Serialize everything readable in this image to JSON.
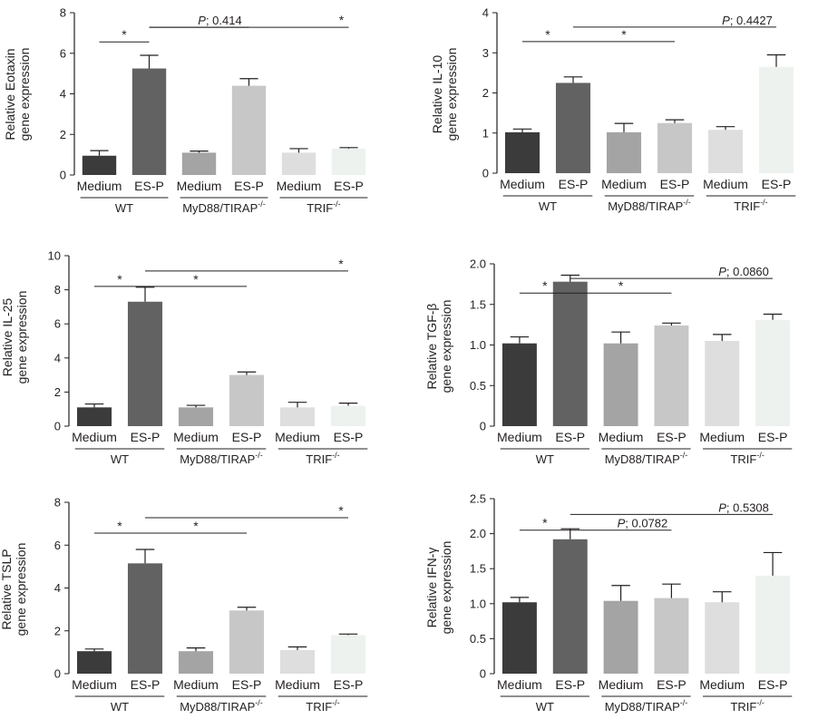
{
  "bar_colors": [
    "#3c3b3c",
    "#626262",
    "#a4a4a4",
    "#c7c7c7",
    "#dedede",
    "#eef2ee"
  ],
  "axis_color": "#231f20",
  "group_labels": [
    "WT",
    "MyD88/TIRAP",
    "TRIF"
  ],
  "group_superscripts": [
    "",
    "-/-",
    "-/-"
  ],
  "chart_data": [
    {
      "type": "bar",
      "panel": "Eotaxin",
      "ylabel": [
        "Relative Eotaxin",
        "gene expression"
      ],
      "categories": [
        "Medium",
        "ES-P",
        "Medium",
        "ES-P",
        "Medium",
        "ES-P"
      ],
      "values": [
        0.95,
        5.25,
        1.1,
        4.4,
        1.1,
        1.3
      ],
      "errors": [
        0.25,
        0.65,
        0.08,
        0.35,
        0.2,
        0.05
      ],
      "ylim": [
        0,
        8
      ],
      "yticks": [
        0,
        2,
        4,
        6,
        8
      ],
      "yticklabels": [
        "0",
        "2",
        "4",
        "6",
        "8"
      ],
      "comparisons": [
        {
          "from": 0,
          "to": 1,
          "label": "*",
          "italic_p": false,
          "level": 0
        },
        {
          "from": 1,
          "to": 3,
          "label": "P; 0.414",
          "italic_p": true,
          "level": 1
        },
        {
          "from": 1,
          "to": 5,
          "label": "*",
          "italic_p": false,
          "level": 1
        }
      ]
    },
    {
      "type": "bar",
      "panel": "IL-10",
      "ylabel": [
        "Relative IL-10",
        "gene expression"
      ],
      "categories": [
        "Medium",
        "ES-P",
        "Medium",
        "ES-P",
        "Medium",
        "ES-P"
      ],
      "values": [
        1.02,
        2.25,
        1.02,
        1.25,
        1.08,
        2.65
      ],
      "errors": [
        0.08,
        0.15,
        0.22,
        0.08,
        0.08,
        0.3
      ],
      "ylim": [
        0,
        4
      ],
      "yticks": [
        0,
        1,
        2,
        3,
        4
      ],
      "yticklabels": [
        "0",
        "1",
        "2",
        "3",
        "4"
      ],
      "comparisons": [
        {
          "from": 0,
          "to": 1,
          "label": "*",
          "italic_p": false,
          "level": 0
        },
        {
          "from": 1,
          "to": 3,
          "label": "*",
          "italic_p": false,
          "level": 0
        },
        {
          "from": 1,
          "to": 5,
          "label": "P; 0.4427",
          "italic_p": true,
          "level": 1
        }
      ]
    },
    {
      "type": "bar",
      "panel": "IL-25",
      "ylabel": [
        "Relative IL-25",
        "gene expression"
      ],
      "categories": [
        "Medium",
        "ES-P",
        "Medium",
        "ES-P",
        "Medium",
        "ES-P"
      ],
      "values": [
        1.1,
        7.3,
        1.1,
        3.0,
        1.1,
        1.2
      ],
      "errors": [
        0.2,
        0.85,
        0.12,
        0.18,
        0.3,
        0.15
      ],
      "ylim": [
        0,
        10
      ],
      "yticks": [
        0,
        2,
        4,
        6,
        8,
        10
      ],
      "yticklabels": [
        "0",
        "2",
        "4",
        "6",
        "8",
        "10"
      ],
      "comparisons": [
        {
          "from": 0,
          "to": 1,
          "label": "*",
          "italic_p": false,
          "level": 0
        },
        {
          "from": 1,
          "to": 3,
          "label": "*",
          "italic_p": false,
          "level": 0
        },
        {
          "from": 1,
          "to": 5,
          "label": "*",
          "italic_p": false,
          "level": 1
        }
      ]
    },
    {
      "type": "bar",
      "panel": "TGF-beta",
      "ylabel": [
        "Relative TGF-β",
        "gene expression"
      ],
      "categories": [
        "Medium",
        "ES-P",
        "Medium",
        "ES-P",
        "Medium",
        "ES-P"
      ],
      "values": [
        1.02,
        1.78,
        1.02,
        1.24,
        1.05,
        1.31
      ],
      "errors": [
        0.08,
        0.08,
        0.14,
        0.03,
        0.08,
        0.07
      ],
      "ylim": [
        0,
        2.0
      ],
      "yticks": [
        0,
        0.5,
        1.0,
        1.5,
        2.0
      ],
      "yticklabels": [
        "0",
        "0.5",
        "1.0",
        "1.5",
        "2.0"
      ],
      "comparisons": [
        {
          "from": 0,
          "to": 1,
          "label": "*",
          "italic_p": false,
          "level": 0
        },
        {
          "from": 1,
          "to": 3,
          "label": "*",
          "italic_p": false,
          "level": 0
        },
        {
          "from": 1,
          "to": 5,
          "label": "P; 0.0860",
          "italic_p": true,
          "level": 1
        }
      ]
    },
    {
      "type": "bar",
      "panel": "TSLP",
      "ylabel": [
        "Relative TSLP",
        "gene expression"
      ],
      "categories": [
        "Medium",
        "ES-P",
        "Medium",
        "ES-P",
        "Medium",
        "ES-P"
      ],
      "values": [
        1.05,
        5.15,
        1.05,
        2.95,
        1.1,
        1.8
      ],
      "errors": [
        0.1,
        0.65,
        0.15,
        0.15,
        0.15,
        0.05
      ],
      "ylim": [
        0,
        8
      ],
      "yticks": [
        0,
        2,
        4,
        6,
        8
      ],
      "yticklabels": [
        "0",
        "2",
        "4",
        "6",
        "8"
      ],
      "comparisons": [
        {
          "from": 0,
          "to": 1,
          "label": "*",
          "italic_p": false,
          "level": 0
        },
        {
          "from": 1,
          "to": 3,
          "label": "*",
          "italic_p": false,
          "level": 0
        },
        {
          "from": 1,
          "to": 5,
          "label": "*",
          "italic_p": false,
          "level": 1
        }
      ]
    },
    {
      "type": "bar",
      "panel": "IFN-gamma",
      "ylabel": [
        "Relative IFN-γ",
        "gene expression"
      ],
      "categories": [
        "Medium",
        "ES-P",
        "Medium",
        "ES-P",
        "Medium",
        "ES-P"
      ],
      "values": [
        1.02,
        1.92,
        1.04,
        1.08,
        1.02,
        1.4
      ],
      "errors": [
        0.07,
        0.15,
        0.22,
        0.2,
        0.15,
        0.33
      ],
      "ylim": [
        0,
        2.5
      ],
      "yticks": [
        0,
        0.5,
        1.0,
        1.5,
        2.0,
        2.5
      ],
      "yticklabels": [
        "0",
        "0.5",
        "1.0",
        "1.5",
        "2.0",
        "2.5"
      ],
      "comparisons": [
        {
          "from": 0,
          "to": 1,
          "label": "*",
          "italic_p": false,
          "level": 0
        },
        {
          "from": 1,
          "to": 3,
          "label": "P; 0.0782",
          "italic_p": true,
          "level": 0
        },
        {
          "from": 1,
          "to": 5,
          "label": "P; 0.5308",
          "italic_p": true,
          "level": 1
        }
      ]
    }
  ]
}
